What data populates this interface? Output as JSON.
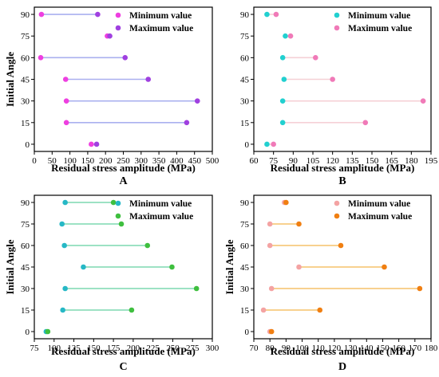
{
  "chart_data": [
    {
      "type": "dumbbell",
      "panel_label": "A",
      "xlabel": "Residual stress amplitude (MPa)",
      "ylabel": "Initial Angle",
      "xlim": [
        0,
        500
      ],
      "xticks": [
        0,
        50,
        100,
        150,
        200,
        250,
        300,
        350,
        400,
        450,
        500
      ],
      "ylim": [
        -5,
        95
      ],
      "yticks": [
        0,
        15,
        30,
        45,
        60,
        75,
        90
      ],
      "legend": {
        "position": "top-right"
      },
      "colors": {
        "min": "#ee3fe0",
        "max": "#a040e0",
        "line": "#aab0ef"
      },
      "series": [
        {
          "name": "Minimum value",
          "points": [
            [
              160,
              0
            ],
            [
              90,
              15
            ],
            [
              90,
              30
            ],
            [
              88,
              45
            ],
            [
              18,
              60
            ],
            [
              205,
              75
            ],
            [
              20,
              90
            ]
          ]
        },
        {
          "name": "Maximum value",
          "points": [
            [
              175,
              0
            ],
            [
              428,
              15
            ],
            [
              458,
              30
            ],
            [
              320,
              45
            ],
            [
              255,
              60
            ],
            [
              212,
              75
            ],
            [
              178,
              90
            ]
          ]
        }
      ]
    },
    {
      "type": "dumbbell",
      "panel_label": "B",
      "xlabel": "Residual stress amplitude (MPa)",
      "ylabel": "",
      "xlim": [
        60,
        195
      ],
      "xticks": [
        60,
        75,
        90,
        105,
        120,
        135,
        150,
        165,
        180,
        195
      ],
      "ylim": [
        -5,
        95
      ],
      "yticks": [
        0,
        15,
        30,
        45,
        60,
        75,
        90
      ],
      "legend": {
        "position": "top-right"
      },
      "colors": {
        "min": "#22d0d0",
        "max": "#f07ab8",
        "line": "#f5d0d6"
      },
      "series": [
        {
          "name": "Minimum value",
          "points": [
            [
              70,
              0
            ],
            [
              82,
              15
            ],
            [
              82,
              30
            ],
            [
              83,
              45
            ],
            [
              82,
              60
            ],
            [
              84,
              75
            ],
            [
              70,
              90
            ]
          ]
        },
        {
          "name": "Maximum value",
          "points": [
            [
              75,
              0
            ],
            [
              145,
              15
            ],
            [
              189,
              30
            ],
            [
              120,
              45
            ],
            [
              107,
              60
            ],
            [
              88,
              75
            ],
            [
              77,
              90
            ]
          ]
        }
      ]
    },
    {
      "type": "dumbbell",
      "panel_label": "C",
      "xlabel": "Residual stress amplitude (MPa)",
      "ylabel": "Initial Angle",
      "xlim": [
        75,
        300
      ],
      "xticks": [
        75,
        100,
        125,
        150,
        175,
        200,
        225,
        250,
        275,
        300
      ],
      "ylim": [
        -5,
        95
      ],
      "yticks": [
        0,
        15,
        30,
        45,
        60,
        75,
        90
      ],
      "legend": {
        "position": "top-right"
      },
      "colors": {
        "min": "#26b8c6",
        "max": "#3fbf3f",
        "line": "#7dd8b0"
      },
      "series": [
        {
          "name": "Minimum value",
          "points": [
            [
              90,
              0
            ],
            [
              111,
              15
            ],
            [
              114,
              30
            ],
            [
              137,
              45
            ],
            [
              113,
              60
            ],
            [
              110,
              75
            ],
            [
              114,
              90
            ]
          ]
        },
        {
          "name": "Maximum value",
          "points": [
            [
              92,
              0
            ],
            [
              198,
              15
            ],
            [
              280,
              30
            ],
            [
              249,
              45
            ],
            [
              218,
              60
            ],
            [
              185,
              75
            ],
            [
              175,
              90
            ]
          ]
        }
      ]
    },
    {
      "type": "dumbbell",
      "panel_label": "D",
      "xlabel": "Residual stress amplitude (MPa)",
      "ylabel": "Initial Angle",
      "xlim": [
        70,
        180
      ],
      "xticks": [
        70,
        80,
        90,
        100,
        110,
        120,
        130,
        140,
        150,
        160,
        170,
        180
      ],
      "ylim": [
        -5,
        95
      ],
      "yticks": [
        0,
        15,
        30,
        45,
        60,
        75,
        90
      ],
      "legend": {
        "position": "top-right"
      },
      "colors": {
        "min": "#f4a3a3",
        "max": "#f07f12",
        "line": "#f6c26a"
      },
      "series": [
        {
          "name": "Minimum value",
          "points": [
            [
              80,
              0
            ],
            [
              76,
              15
            ],
            [
              81,
              30
            ],
            [
              98,
              45
            ],
            [
              80,
              60
            ],
            [
              80,
              75
            ],
            [
              89,
              90
            ]
          ]
        },
        {
          "name": "Maximum value",
          "points": [
            [
              81,
              0
            ],
            [
              111,
              15
            ],
            [
              173,
              30
            ],
            [
              151,
              45
            ],
            [
              124,
              60
            ],
            [
              98,
              75
            ],
            [
              90,
              90
            ]
          ]
        }
      ]
    }
  ]
}
